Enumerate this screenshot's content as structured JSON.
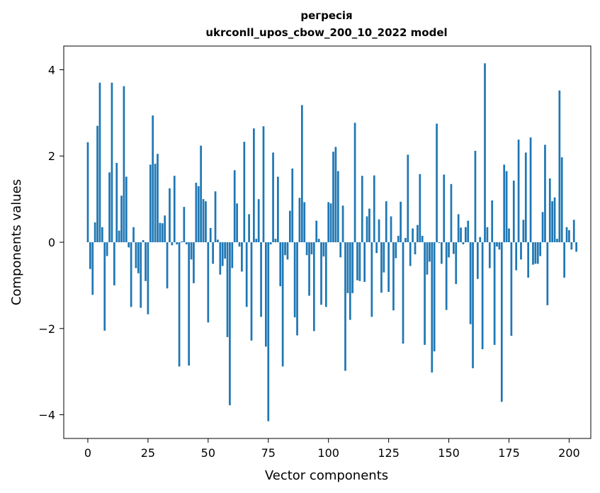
{
  "chart_data": {
    "type": "bar",
    "title": "регресія",
    "subtitle": "ukrconll_upos_cbow_200_10_2022 model",
    "xlabel": "Vector components",
    "ylabel": "Components values",
    "xlim": [
      -10,
      209
    ],
    "ylim": [
      -4.55,
      4.55
    ],
    "xticks": [
      0,
      25,
      50,
      75,
      100,
      125,
      150,
      175,
      200
    ],
    "yticks": [
      -4,
      -2,
      0,
      2,
      4
    ],
    "ytick_labels": [
      "−4",
      "−2",
      "0",
      "2",
      "4"
    ],
    "grid": false,
    "legend": "none",
    "bar_color": "#1f77b4",
    "values": [
      2.32,
      -0.62,
      -1.22,
      0.46,
      2.7,
      3.7,
      0.35,
      -2.05,
      -0.32,
      1.62,
      3.7,
      -1.0,
      1.84,
      0.27,
      1.08,
      3.62,
      1.52,
      -0.12,
      -1.5,
      0.35,
      -0.6,
      -0.72,
      -1.52,
      0.05,
      -0.9,
      -1.67,
      1.8,
      2.94,
      1.82,
      2.05,
      0.45,
      0.44,
      0.62,
      -1.07,
      1.25,
      -0.07,
      1.54,
      -0.05,
      -2.88,
      0.02,
      0.82,
      -0.05,
      -2.86,
      -0.4,
      -0.95,
      1.38,
      1.3,
      2.24,
      1.0,
      0.95,
      -1.86,
      0.33,
      -0.5,
      1.18,
      0.06,
      -0.75,
      -0.55,
      -0.38,
      -2.2,
      -3.78,
      -0.6,
      1.67,
      0.9,
      -0.1,
      -0.68,
      2.33,
      -1.5,
      0.65,
      -2.28,
      2.64,
      0.08,
      1.0,
      -1.73,
      2.69,
      -2.42,
      -4.15,
      -0.05,
      2.08,
      0.08,
      1.52,
      -1.02,
      -2.88,
      -0.3,
      -0.4,
      0.73,
      1.71,
      -1.74,
      -2.16,
      1.03,
      3.18,
      0.93,
      -0.3,
      -1.24,
      -0.28,
      -2.06,
      0.5,
      0.08,
      -1.45,
      -0.33,
      -1.5,
      0.93,
      0.9,
      2.1,
      2.21,
      1.65,
      -0.35,
      0.85,
      -2.98,
      -1.18,
      -1.8,
      -1.18,
      2.77,
      -0.88,
      -0.9,
      1.54,
      -0.92,
      0.6,
      0.78,
      -1.73,
      1.55,
      -0.25,
      0.53,
      -1.17,
      -0.7,
      0.95,
      -1.15,
      0.6,
      -1.58,
      -0.37,
      0.15,
      0.94,
      -2.35,
      0.1,
      2.03,
      -0.55,
      0.32,
      -0.28,
      0.4,
      1.58,
      0.15,
      -2.38,
      -0.75,
      -0.45,
      -3.02,
      -2.53,
      2.75,
      -0.02,
      -0.5,
      1.57,
      -1.57,
      -0.35,
      1.35,
      -0.27,
      -0.97,
      0.65,
      0.34,
      -0.05,
      0.35,
      0.5,
      -1.9,
      -2.92,
      2.12,
      -0.85,
      0.12,
      -2.48,
      4.15,
      0.35,
      -0.6,
      0.97,
      -2.38,
      -0.1,
      -0.17,
      -3.7,
      1.8,
      1.65,
      0.32,
      -2.17,
      1.43,
      -0.65,
      2.38,
      -0.4,
      0.52,
      2.08,
      -0.82,
      2.43,
      -0.52,
      -0.5,
      -0.5,
      -0.32,
      0.7,
      2.26,
      -1.46,
      1.48,
      0.95,
      1.04,
      0.08,
      3.52,
      1.97,
      -0.82,
      0.35,
      0.28,
      -0.17,
      0.52,
      -0.22
    ]
  }
}
